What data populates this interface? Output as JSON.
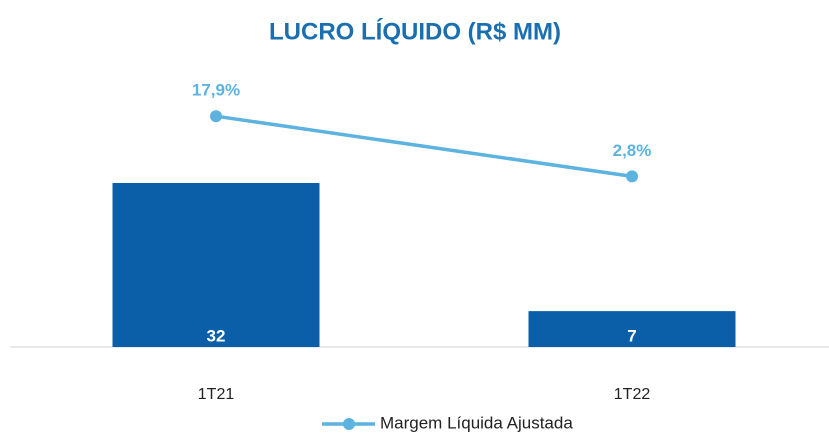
{
  "chart_data": {
    "type": "bar",
    "title": "LUCRO LÍQUIDO (R$ MM)",
    "categories": [
      "1T21",
      "1T22"
    ],
    "series": [
      {
        "color": "#0b5ea8",
        "values": [
          32,
          7
        ]
      },
      {
        "name": "Margem Líquida Ajustada",
        "type": "line",
        "axis": "y2",
        "color": "#5cb3e0",
        "values": [
          17.9,
          2.8
        ],
        "value_labels": [
          "17,9%",
          "2,8%"
        ]
      }
    ],
    "ylim": [
      0,
      56
    ],
    "y2lim": [
      -40,
      32
    ]
  }
}
